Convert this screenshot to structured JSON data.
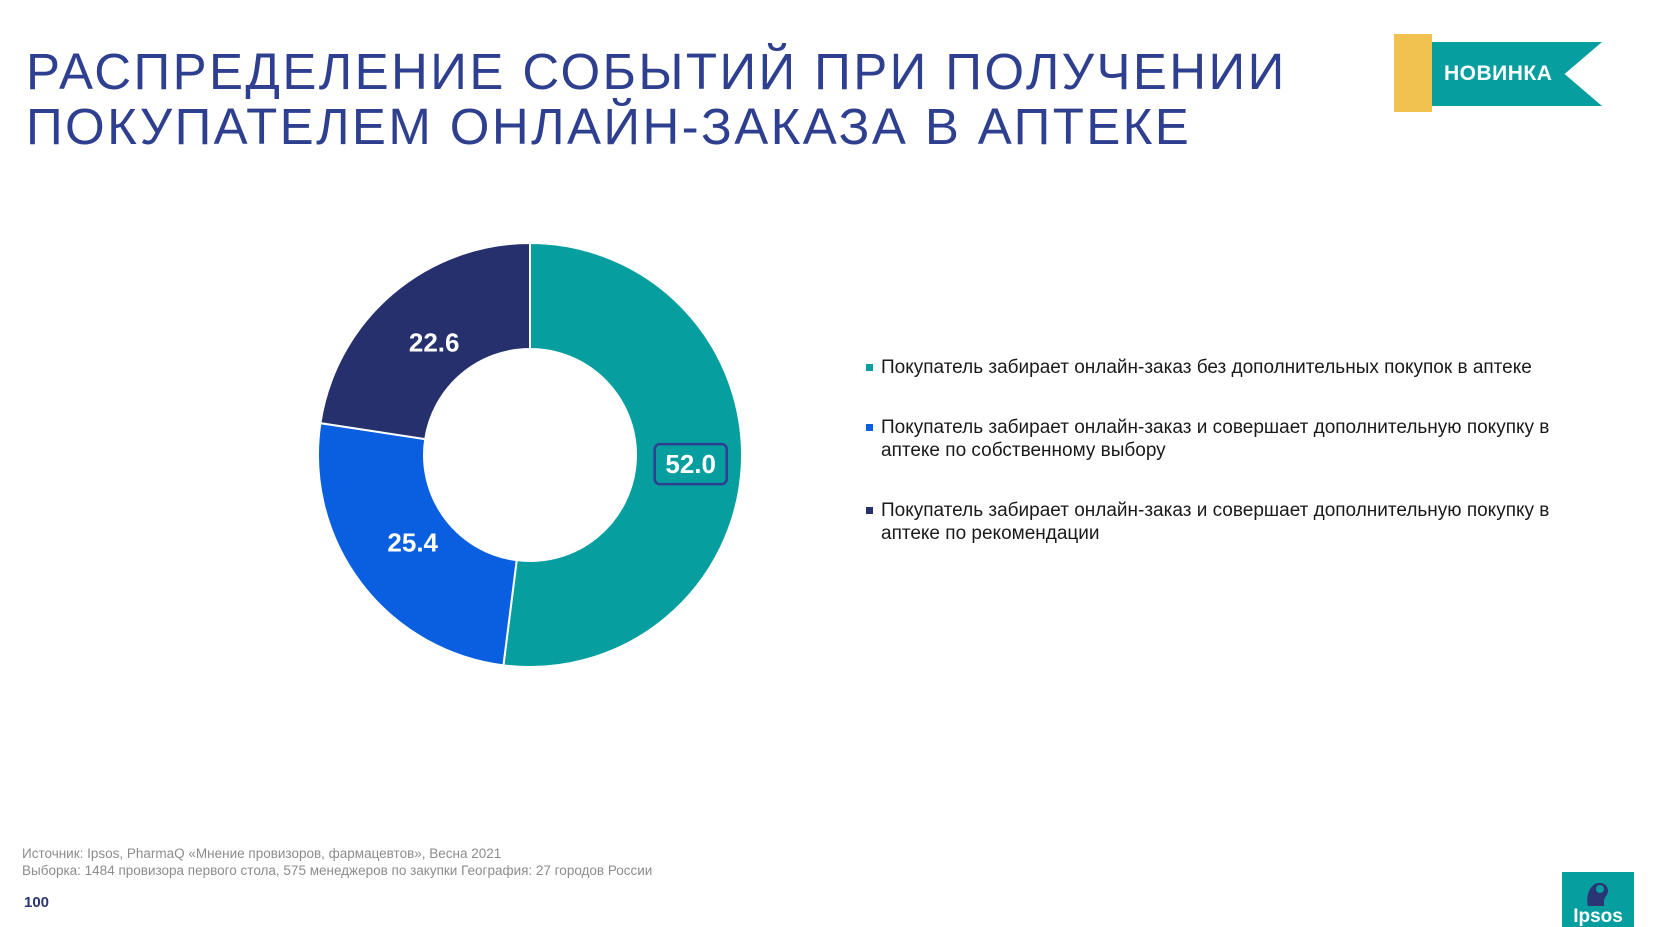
{
  "title": {
    "line1": "РАСПРЕДЕЛЕНИЕ СОБЫТИЙ ПРИ ПОЛУЧЕНИИ",
    "line2": "ПОКУПАТЕЛЕМ ОНЛАЙН-ЗАКАЗА В АПТЕКЕ"
  },
  "badge": {
    "label": "НОВИНКА",
    "ribbon_color": "#079ea0",
    "accent_color": "#f1c250"
  },
  "chart_data": {
    "type": "pie",
    "subtype": "donut",
    "title": "",
    "series": [
      {
        "name": "Покупатель забирает онлайн-заказ без дополнительных покупок в аптеке",
        "value": 52.0,
        "label": "52.0",
        "color": "#079ea0",
        "highlighted": true
      },
      {
        "name": "Покупатель забирает онлайн-заказ и совершает дополнительную покупку в аптеке по собственному выбору",
        "value": 25.4,
        "label": "25.4",
        "color": "#0a5fe0"
      },
      {
        "name": "Покупатель забирает онлайн-заказ и совершает дополнительную покупку в аптеке по рекомендации",
        "value": 22.6,
        "label": "22.6",
        "color": "#25306d"
      }
    ],
    "legend_position": "right",
    "start_angle": "12 o'clock",
    "direction": "clockwise"
  },
  "footer": {
    "source": "Источник: Ipsos, PharmaQ «Мнение провизоров, фармацевтов», Весна 2021",
    "sample": "Выборка: 1484 провизора первого стола, 575 менеджеров по закупки География: 27 городов России",
    "page_number": "100"
  },
  "logo": {
    "text": "Ipsos",
    "color": "#079ea0"
  }
}
